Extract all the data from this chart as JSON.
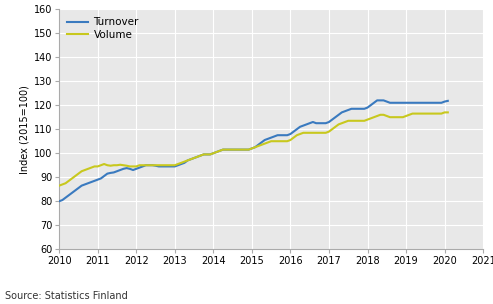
{
  "title": "",
  "ylabel": "Index (2015=100)",
  "source": "Source: Statistics Finland",
  "xlim": [
    2010.0,
    2021.0
  ],
  "ylim": [
    60,
    160
  ],
  "yticks": [
    60,
    70,
    80,
    90,
    100,
    110,
    120,
    130,
    140,
    150,
    160
  ],
  "xticks": [
    2010,
    2011,
    2012,
    2013,
    2014,
    2015,
    2016,
    2017,
    2018,
    2019,
    2020,
    2021
  ],
  "turnover_color": "#3a7abf",
  "volume_color": "#c8c81e",
  "background_color": "#e8e8e8",
  "plot_bg_color": "#e8e8e8",
  "fig_bg_color": "#ffffff",
  "grid_color": "#ffffff",
  "line_width": 1.5,
  "turnover": [
    80.0,
    80.5,
    81.5,
    82.5,
    83.5,
    84.5,
    85.5,
    86.5,
    87.0,
    87.5,
    88.0,
    88.5,
    89.0,
    89.5,
    90.5,
    91.5,
    91.8,
    92.0,
    92.5,
    93.0,
    93.5,
    93.8,
    93.5,
    93.0,
    93.5,
    94.0,
    94.5,
    95.0,
    95.0,
    95.0,
    94.8,
    94.5,
    94.5,
    94.5,
    94.5,
    94.5,
    94.5,
    95.0,
    95.5,
    96.0,
    97.0,
    97.5,
    98.0,
    98.5,
    99.0,
    99.5,
    99.5,
    99.5,
    100.0,
    100.5,
    101.0,
    101.5,
    101.5,
    101.5,
    101.5,
    101.5,
    101.5,
    101.5,
    101.5,
    101.5,
    102.0,
    102.5,
    103.5,
    104.5,
    105.5,
    106.0,
    106.5,
    107.0,
    107.5,
    107.5,
    107.5,
    107.5,
    108.0,
    109.0,
    110.0,
    111.0,
    111.5,
    112.0,
    112.5,
    113.0,
    112.5,
    112.5,
    112.5,
    112.5,
    113.0,
    114.0,
    115.0,
    116.0,
    117.0,
    117.5,
    118.0,
    118.5,
    118.5,
    118.5,
    118.5,
    118.5,
    119.0,
    120.0,
    121.0,
    122.0,
    122.0,
    122.0,
    121.5,
    121.0,
    121.0,
    121.0,
    121.0,
    121.0,
    121.0,
    121.0,
    121.0,
    121.0,
    121.0,
    121.0,
    121.0,
    121.0,
    121.0,
    121.0,
    121.0,
    121.0,
    121.5,
    121.8
  ],
  "volume": [
    86.5,
    87.0,
    87.5,
    88.5,
    89.5,
    90.5,
    91.5,
    92.5,
    93.0,
    93.5,
    94.0,
    94.5,
    94.5,
    95.0,
    95.5,
    95.0,
    94.8,
    95.0,
    95.0,
    95.2,
    95.0,
    94.8,
    94.5,
    94.5,
    94.5,
    95.0,
    95.0,
    95.0,
    95.0,
    95.0,
    95.0,
    95.0,
    95.0,
    95.0,
    95.0,
    95.0,
    95.0,
    95.5,
    96.0,
    96.5,
    97.0,
    97.5,
    98.0,
    98.5,
    99.0,
    99.5,
    99.5,
    99.5,
    100.0,
    100.5,
    101.0,
    101.5,
    101.5,
    101.5,
    101.5,
    101.5,
    101.5,
    101.5,
    101.5,
    101.5,
    102.0,
    102.5,
    103.0,
    103.5,
    104.0,
    104.5,
    105.0,
    105.0,
    105.0,
    105.0,
    105.0,
    105.0,
    105.5,
    106.5,
    107.5,
    108.0,
    108.5,
    108.5,
    108.5,
    108.5,
    108.5,
    108.5,
    108.5,
    108.5,
    109.0,
    110.0,
    111.0,
    112.0,
    112.5,
    113.0,
    113.5,
    113.5,
    113.5,
    113.5,
    113.5,
    113.5,
    114.0,
    114.5,
    115.0,
    115.5,
    116.0,
    116.0,
    115.5,
    115.0,
    115.0,
    115.0,
    115.0,
    115.0,
    115.5,
    116.0,
    116.5,
    116.5,
    116.5,
    116.5,
    116.5,
    116.5,
    116.5,
    116.5,
    116.5,
    116.5,
    117.0,
    117.0
  ],
  "n_months": 122
}
